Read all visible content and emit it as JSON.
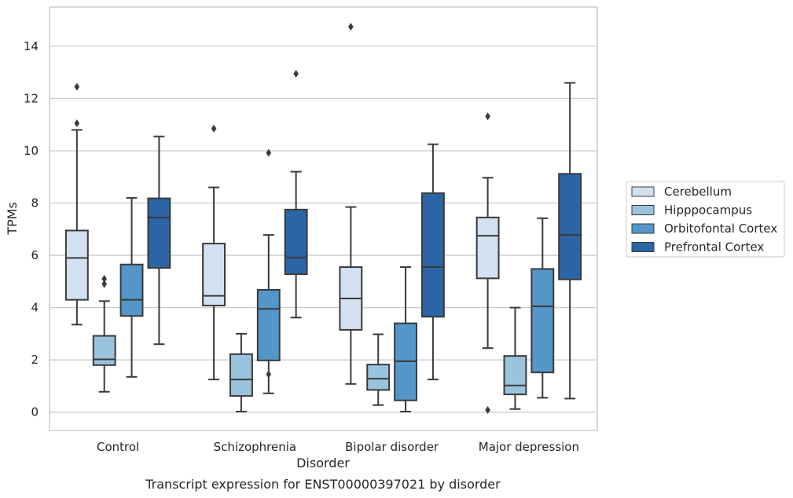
{
  "chart_data": {
    "type": "box",
    "caption": "Transcript expression for ENST00000397021 by disorder",
    "xlabel": "Disorder",
    "ylabel": "TPMs",
    "ylim": [
      -0.7,
      15.5
    ],
    "yticks": [
      0,
      2,
      4,
      6,
      8,
      10,
      12,
      14
    ],
    "grid": true,
    "legend_position": "right",
    "categories": [
      "Control",
      "Schizophrenia",
      "Bipolar disorder",
      "Major depression"
    ],
    "series": [
      {
        "name": "Cerebellum",
        "color": "#d2e1f1",
        "boxes": [
          {
            "whisker_low": 3.35,
            "q1": 4.3,
            "median": 5.9,
            "q3": 6.95,
            "whisker_high": 10.8,
            "outliers": [
              11.05,
              12.45
            ]
          },
          {
            "whisker_low": 1.25,
            "q1": 4.08,
            "median": 4.45,
            "q3": 6.45,
            "whisker_high": 8.6,
            "outliers": [
              10.85
            ]
          },
          {
            "whisker_low": 1.08,
            "q1": 3.15,
            "median": 4.35,
            "q3": 5.55,
            "whisker_high": 7.85,
            "outliers": [
              14.75
            ]
          },
          {
            "whisker_low": 2.45,
            "q1": 5.12,
            "median": 6.75,
            "q3": 7.45,
            "whisker_high": 8.97,
            "outliers": [
              0.08,
              11.32
            ]
          }
        ]
      },
      {
        "name": "Hipppocampus",
        "color": "#9ac3de",
        "boxes": [
          {
            "whisker_low": 0.78,
            "q1": 1.8,
            "median": 2.02,
            "q3": 2.92,
            "whisker_high": 4.25,
            "outliers": [
              4.9,
              5.1
            ]
          },
          {
            "whisker_low": 0.02,
            "q1": 0.62,
            "median": 1.25,
            "q3": 2.22,
            "whisker_high": 3.0,
            "outliers": []
          },
          {
            "whisker_low": 0.27,
            "q1": 0.85,
            "median": 1.28,
            "q3": 1.82,
            "whisker_high": 2.98,
            "outliers": []
          },
          {
            "whisker_low": 0.12,
            "q1": 0.68,
            "median": 1.02,
            "q3": 2.15,
            "whisker_high": 4.0,
            "outliers": []
          }
        ]
      },
      {
        "name": "Orbitofontal Cortex",
        "color": "#5496c8",
        "boxes": [
          {
            "whisker_low": 1.35,
            "q1": 3.68,
            "median": 4.3,
            "q3": 5.65,
            "whisker_high": 8.2,
            "outliers": []
          },
          {
            "whisker_low": 0.72,
            "q1": 1.98,
            "median": 3.95,
            "q3": 4.68,
            "whisker_high": 6.78,
            "outliers": [
              1.45,
              9.92
            ]
          },
          {
            "whisker_low": 0.02,
            "q1": 0.45,
            "median": 1.95,
            "q3": 3.4,
            "whisker_high": 5.55,
            "outliers": []
          },
          {
            "whisker_low": 0.55,
            "q1": 1.52,
            "median": 4.05,
            "q3": 5.48,
            "whisker_high": 7.42,
            "outliers": []
          }
        ]
      },
      {
        "name": "Prefrontal Cortex",
        "color": "#2b65a6",
        "boxes": [
          {
            "whisker_low": 2.6,
            "q1": 5.52,
            "median": 7.45,
            "q3": 8.18,
            "whisker_high": 10.55,
            "outliers": []
          },
          {
            "whisker_low": 3.62,
            "q1": 5.28,
            "median": 5.92,
            "q3": 7.75,
            "whisker_high": 9.2,
            "outliers": [
              12.95
            ]
          },
          {
            "whisker_low": 1.25,
            "q1": 3.65,
            "median": 5.55,
            "q3": 8.38,
            "whisker_high": 10.25,
            "outliers": []
          },
          {
            "whisker_low": 0.52,
            "q1": 5.08,
            "median": 6.78,
            "q3": 9.12,
            "whisker_high": 12.6,
            "outliers": []
          }
        ]
      }
    ]
  }
}
